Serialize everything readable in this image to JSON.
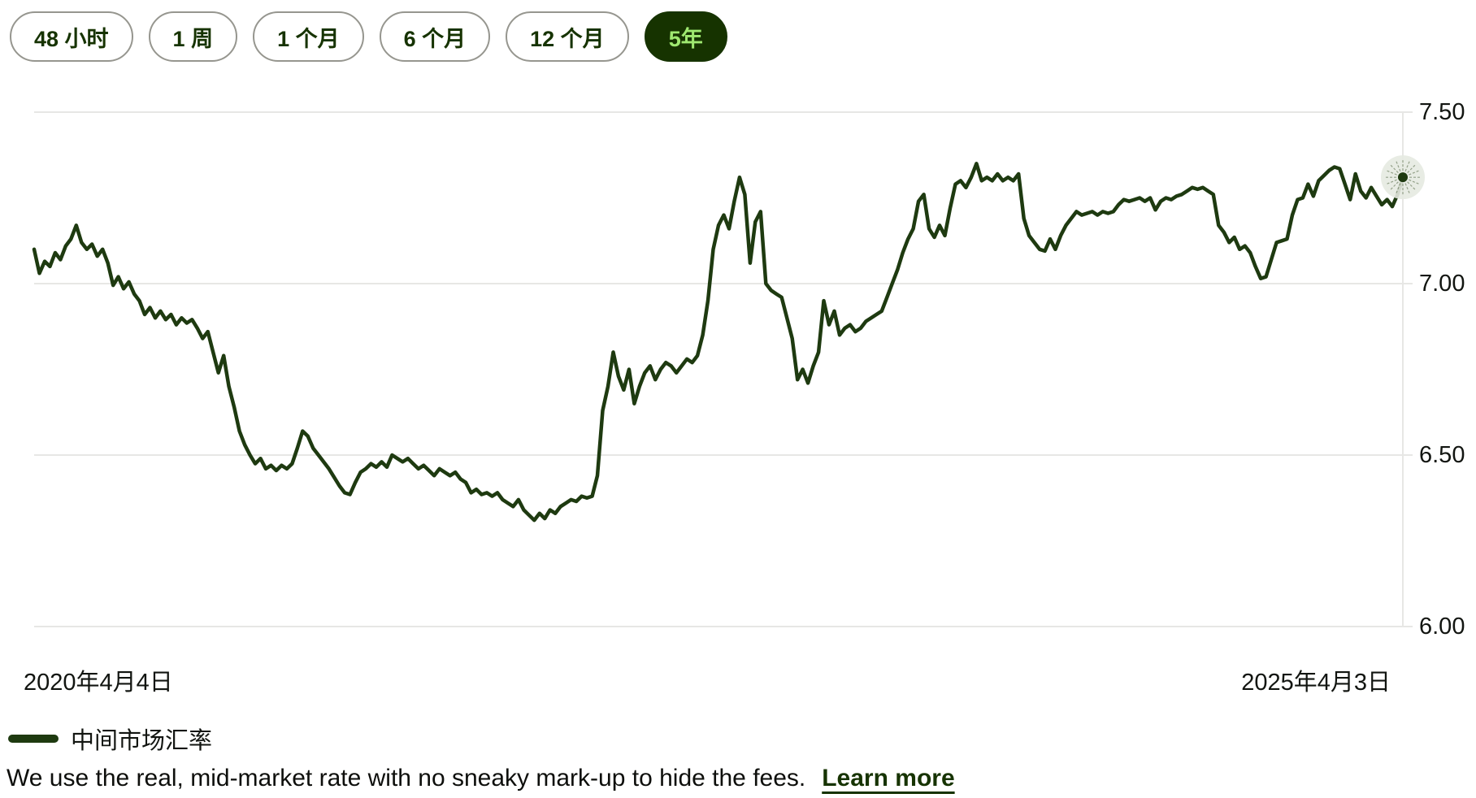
{
  "time_range_buttons": [
    {
      "label": "48 小时",
      "selected": false
    },
    {
      "label": "1 周",
      "selected": false
    },
    {
      "label": "1 个月",
      "selected": false
    },
    {
      "label": "6 个月",
      "selected": false
    },
    {
      "label": "12 个月",
      "selected": false
    },
    {
      "label": "5年",
      "selected": true
    }
  ],
  "colors": {
    "line": "#1E3A10",
    "dark_green": "#163300",
    "bright_green": "#9FE870",
    "gridline": "#E7E7E5",
    "text": "#121511",
    "halo_fill": "#E6EAE1"
  },
  "legend": {
    "label": "中间市场汇率"
  },
  "footer": {
    "text": "We use the real, mid-market rate with no sneaky mark-up to hide the fees.",
    "link_label": "Learn more"
  },
  "chart_data": {
    "type": "line",
    "series_name": "中间市场汇率",
    "x_start_label": "2020年4月4日",
    "x_end_label": "2025年4月3日",
    "y_ticks": [
      {
        "label": "7.50",
        "value": 7.5
      },
      {
        "label": "7.00",
        "value": 7.0
      },
      {
        "label": "6.50",
        "value": 6.5
      },
      {
        "label": "6.00",
        "value": 6.0
      }
    ],
    "ylim": [
      6.0,
      7.5
    ],
    "grid": "horizontal",
    "legend_position": "bottom-left",
    "endpoint_marker": true,
    "values": [
      7.1,
      7.03,
      7.065,
      7.05,
      7.09,
      7.07,
      7.11,
      7.13,
      7.17,
      7.12,
      7.1,
      7.115,
      7.08,
      7.1,
      7.06,
      6.995,
      7.02,
      6.985,
      7.005,
      6.97,
      6.95,
      6.91,
      6.93,
      6.9,
      6.92,
      6.895,
      6.91,
      6.88,
      6.9,
      6.885,
      6.895,
      6.87,
      6.84,
      6.86,
      6.8,
      6.74,
      6.79,
      6.7,
      6.64,
      6.57,
      6.53,
      6.5,
      6.475,
      6.49,
      6.46,
      6.47,
      6.455,
      6.47,
      6.46,
      6.475,
      6.52,
      6.57,
      6.555,
      6.52,
      6.5,
      6.48,
      6.46,
      6.435,
      6.41,
      6.39,
      6.385,
      6.42,
      6.45,
      6.46,
      6.475,
      6.465,
      6.48,
      6.465,
      6.5,
      6.49,
      6.48,
      6.49,
      6.475,
      6.46,
      6.47,
      6.455,
      6.44,
      6.46,
      6.45,
      6.44,
      6.45,
      6.43,
      6.42,
      6.39,
      6.4,
      6.385,
      6.39,
      6.38,
      6.39,
      6.37,
      6.36,
      6.35,
      6.37,
      6.34,
      6.325,
      6.31,
      6.33,
      6.315,
      6.34,
      6.33,
      6.35,
      6.36,
      6.37,
      6.365,
      6.38,
      6.375,
      6.38,
      6.44,
      6.63,
      6.7,
      6.8,
      6.73,
      6.69,
      6.75,
      6.65,
      6.7,
      6.74,
      6.76,
      6.72,
      6.75,
      6.77,
      6.76,
      6.74,
      6.76,
      6.78,
      6.77,
      6.79,
      6.85,
      6.95,
      7.1,
      7.17,
      7.2,
      7.16,
      7.24,
      7.31,
      7.26,
      7.06,
      7.18,
      7.21,
      7.0,
      6.98,
      6.97,
      6.96,
      6.9,
      6.84,
      6.72,
      6.75,
      6.71,
      6.76,
      6.8,
      6.95,
      6.88,
      6.92,
      6.85,
      6.87,
      6.88,
      6.86,
      6.87,
      6.89,
      6.9,
      6.91,
      6.92,
      6.96,
      7.0,
      7.04,
      7.09,
      7.13,
      7.16,
      7.24,
      7.26,
      7.16,
      7.135,
      7.17,
      7.14,
      7.22,
      7.29,
      7.3,
      7.28,
      7.31,
      7.35,
      7.3,
      7.31,
      7.3,
      7.32,
      7.3,
      7.31,
      7.3,
      7.32,
      7.19,
      7.14,
      7.12,
      7.1,
      7.095,
      7.13,
      7.1,
      7.14,
      7.17,
      7.19,
      7.21,
      7.2,
      7.205,
      7.21,
      7.2,
      7.21,
      7.205,
      7.21,
      7.23,
      7.245,
      7.24,
      7.245,
      7.25,
      7.24,
      7.25,
      7.215,
      7.24,
      7.25,
      7.245,
      7.255,
      7.26,
      7.27,
      7.28,
      7.275,
      7.28,
      7.27,
      7.26,
      7.17,
      7.15,
      7.12,
      7.135,
      7.1,
      7.11,
      7.09,
      7.05,
      7.015,
      7.02,
      7.07,
      7.12,
      7.125,
      7.13,
      7.2,
      7.245,
      7.25,
      7.29,
      7.255,
      7.3,
      7.315,
      7.33,
      7.34,
      7.335,
      7.29,
      7.245,
      7.32,
      7.27,
      7.25,
      7.28,
      7.255,
      7.23,
      7.245,
      7.225,
      7.26,
      7.31
    ]
  }
}
